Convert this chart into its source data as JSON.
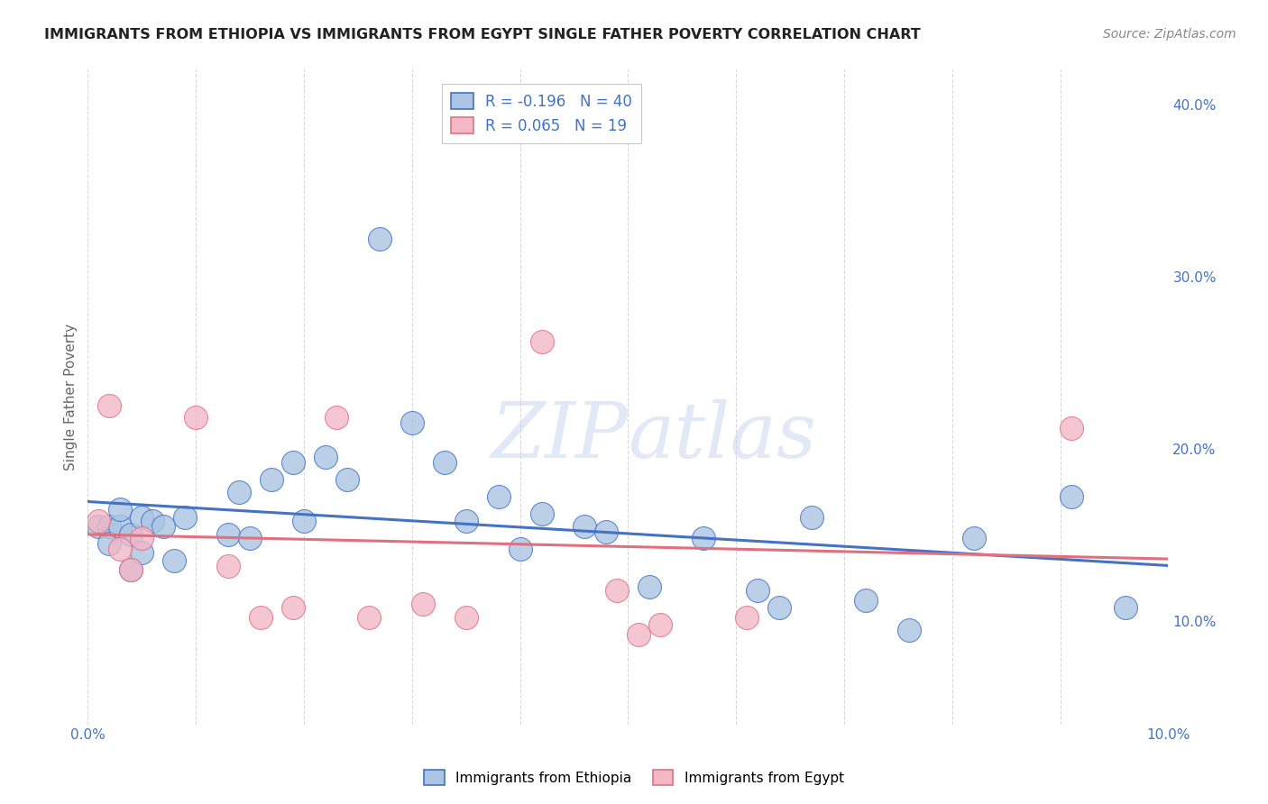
{
  "title": "IMMIGRANTS FROM ETHIOPIA VS IMMIGRANTS FROM EGYPT SINGLE FATHER POVERTY CORRELATION CHART",
  "source": "Source: ZipAtlas.com",
  "ylabel": "Single Father Poverty",
  "ylabel_right_ticks": [
    "10.0%",
    "20.0%",
    "30.0%",
    "40.0%"
  ],
  "ylabel_right_vals": [
    0.1,
    0.2,
    0.3,
    0.4
  ],
  "legend1_R": "-0.196",
  "legend1_N": "40",
  "legend2_R": "0.065",
  "legend2_N": "19",
  "color_ethiopia": "#aac4e2",
  "color_egypt": "#f2b8c6",
  "color_line_ethiopia": "#4472c4",
  "color_line_egypt": "#e07080",
  "ethiopia_x": [
    0.001,
    0.002,
    0.002,
    0.003,
    0.003,
    0.004,
    0.004,
    0.005,
    0.005,
    0.006,
    0.007,
    0.008,
    0.009,
    0.013,
    0.014,
    0.015,
    0.017,
    0.019,
    0.02,
    0.022,
    0.024,
    0.027,
    0.03,
    0.033,
    0.035,
    0.038,
    0.04,
    0.042,
    0.046,
    0.048,
    0.052,
    0.057,
    0.062,
    0.064,
    0.067,
    0.072,
    0.076,
    0.082,
    0.091,
    0.096
  ],
  "ethiopia_y": [
    0.155,
    0.155,
    0.145,
    0.155,
    0.165,
    0.15,
    0.13,
    0.16,
    0.14,
    0.158,
    0.155,
    0.135,
    0.16,
    0.15,
    0.175,
    0.148,
    0.182,
    0.192,
    0.158,
    0.195,
    0.182,
    0.322,
    0.215,
    0.192,
    0.158,
    0.172,
    0.142,
    0.162,
    0.155,
    0.152,
    0.12,
    0.148,
    0.118,
    0.108,
    0.16,
    0.112,
    0.095,
    0.148,
    0.172,
    0.108
  ],
  "egypt_x": [
    0.001,
    0.002,
    0.003,
    0.004,
    0.005,
    0.01,
    0.013,
    0.016,
    0.019,
    0.023,
    0.026,
    0.031,
    0.035,
    0.042,
    0.049,
    0.051,
    0.053,
    0.061,
    0.091
  ],
  "egypt_y": [
    0.158,
    0.225,
    0.142,
    0.13,
    0.148,
    0.218,
    0.132,
    0.102,
    0.108,
    0.218,
    0.102,
    0.11,
    0.102,
    0.262,
    0.118,
    0.092,
    0.098,
    0.102,
    0.212
  ],
  "xlim": [
    0.0,
    0.1
  ],
  "ylim": [
    0.04,
    0.42
  ],
  "watermark_zip": "ZIP",
  "watermark_atlas": "atlas",
  "background_color": "#ffffff",
  "grid_color": "#d8d8d8",
  "title_color": "#222222",
  "source_color": "#888888",
  "tick_color": "#4472c4",
  "ylabel_color": "#666666"
}
